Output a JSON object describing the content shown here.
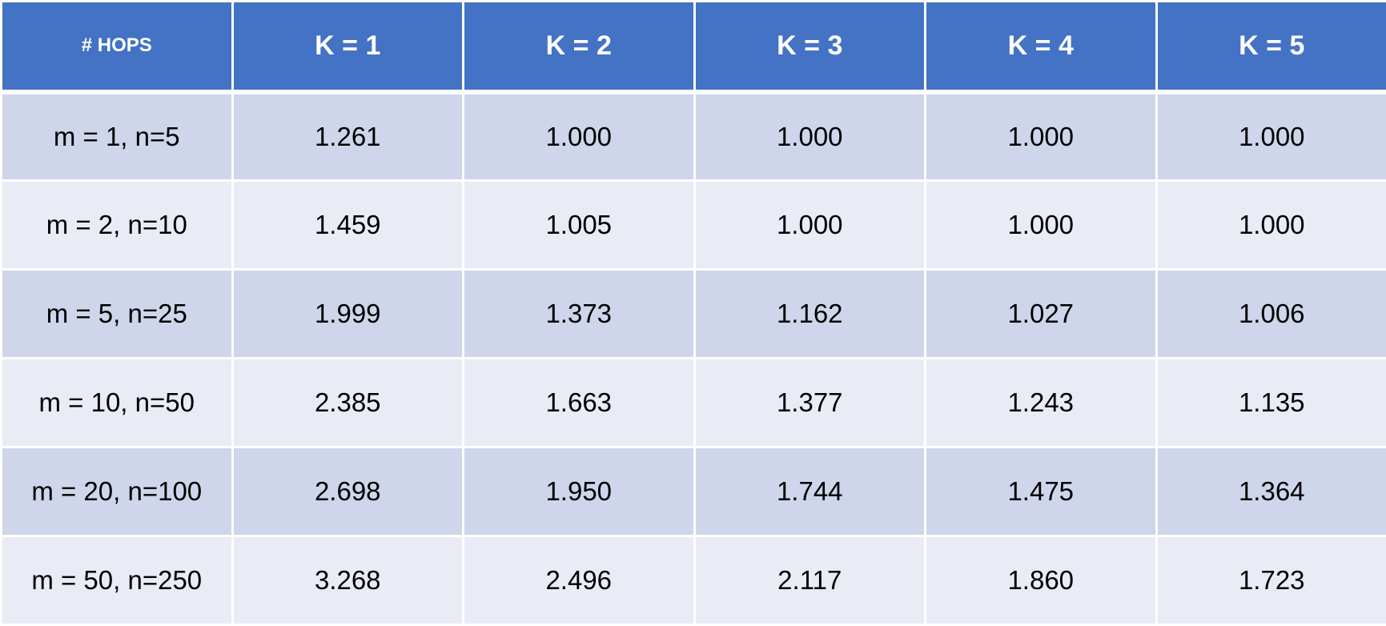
{
  "chart_data": {
    "type": "table",
    "columns": [
      "# HOPS",
      "K = 1",
      "K = 2",
      "K = 3",
      "K = 4",
      "K = 5"
    ],
    "rows": [
      [
        "m = 1, n=5",
        "1.261",
        "1.000",
        "1.000",
        "1.000",
        "1.000"
      ],
      [
        "m = 2, n=10",
        "1.459",
        "1.005",
        "1.000",
        "1.000",
        "1.000"
      ],
      [
        "m = 5, n=25",
        "1.999",
        "1.373",
        "1.162",
        "1.027",
        "1.006"
      ],
      [
        "m = 10, n=50",
        "2.385",
        "1.663",
        "1.377",
        "1.243",
        "1.135"
      ],
      [
        "m = 20, n=100",
        "2.698",
        "1.950",
        "1.744",
        "1.475",
        "1.364"
      ],
      [
        "m = 50, n=250",
        "3.268",
        "2.496",
        "2.117",
        "1.860",
        "1.723"
      ]
    ]
  },
  "colors": {
    "header_bg": "#4472c4",
    "header_text": "#ffffff",
    "row_odd": "#cfd5ea",
    "row_even": "#e9ebf5",
    "cell_text": "#000000"
  }
}
